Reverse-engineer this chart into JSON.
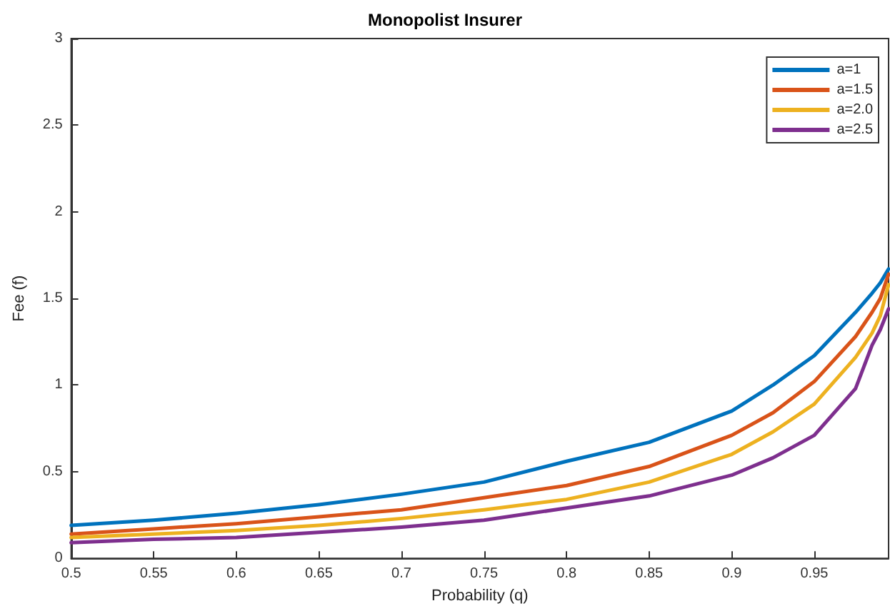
{
  "chart_data": {
    "type": "line",
    "title": "Monopolist Insurer",
    "xlabel": "Probability (q)",
    "ylabel": "Fee (f)",
    "x": [
      0.5,
      0.55,
      0.6,
      0.65,
      0.7,
      0.75,
      0.8,
      0.85,
      0.9,
      0.925,
      0.95,
      0.975,
      0.985,
      0.99,
      0.995
    ],
    "series": [
      {
        "name": "a=1",
        "color": "#0072bd",
        "values": [
          0.19,
          0.22,
          0.26,
          0.31,
          0.37,
          0.44,
          0.56,
          0.67,
          0.85,
          1.0,
          1.17,
          1.42,
          1.53,
          1.59,
          1.67
        ]
      },
      {
        "name": "a=1.5",
        "color": "#d95319",
        "values": [
          0.14,
          0.17,
          0.2,
          0.24,
          0.28,
          0.35,
          0.42,
          0.53,
          0.71,
          0.84,
          1.02,
          1.28,
          1.42,
          1.5,
          1.64
        ]
      },
      {
        "name": "a=2.0",
        "color": "#edb120",
        "values": [
          0.12,
          0.14,
          0.16,
          0.19,
          0.23,
          0.28,
          0.34,
          0.44,
          0.6,
          0.73,
          0.89,
          1.16,
          1.3,
          1.4,
          1.58
        ]
      },
      {
        "name": "a=2.5",
        "color": "#7e2f8e",
        "values": [
          0.09,
          0.11,
          0.12,
          0.15,
          0.18,
          0.22,
          0.29,
          0.36,
          0.48,
          0.58,
          0.71,
          0.98,
          1.23,
          1.32,
          1.44
        ]
      }
    ],
    "xlim": [
      0.5,
      0.995
    ],
    "xticks": [
      0.5,
      0.55,
      0.6,
      0.65,
      0.7,
      0.75,
      0.8,
      0.85,
      0.9,
      0.95
    ],
    "ylim": [
      0,
      3
    ],
    "yticks": [
      0,
      0.5,
      1,
      1.5,
      2,
      2.5,
      3
    ],
    "grid": false,
    "legend": "top right",
    "marker": "none",
    "line_style": "solid"
  }
}
